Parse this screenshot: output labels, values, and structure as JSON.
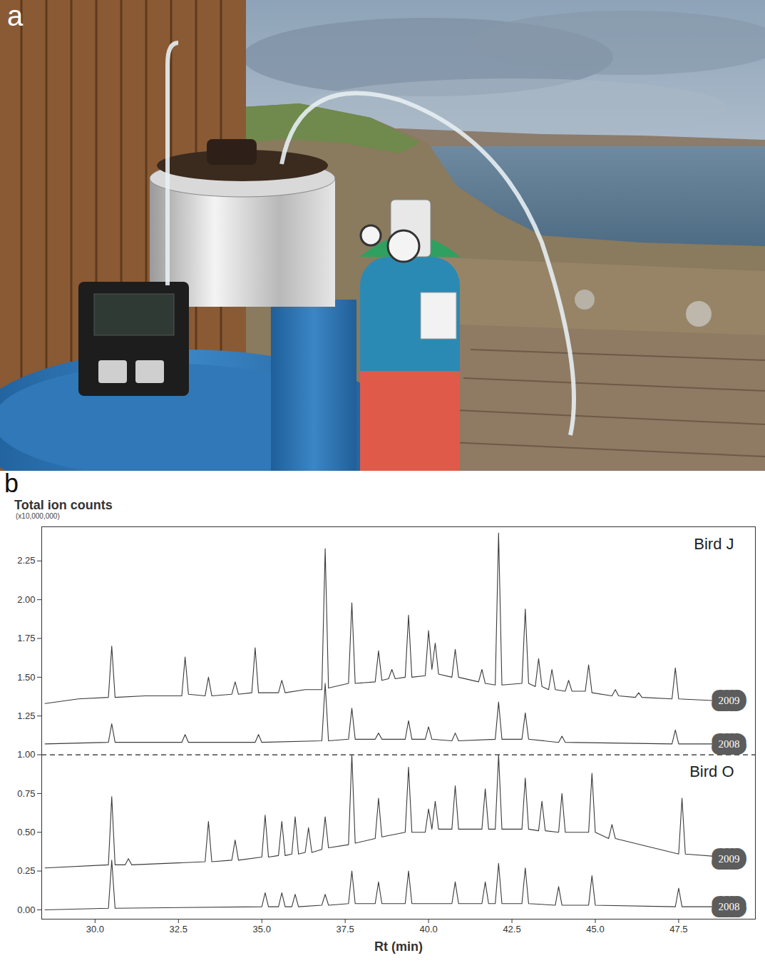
{
  "panel_letters": [
    "a",
    "b"
  ],
  "chart_data": {
    "type": "line",
    "ylabel": "Total ion counts",
    "ylabel_note": "(x10,000,000)",
    "xlabel": "Rt (min)",
    "xlim": [
      28.4,
      49.8
    ],
    "ylim": [
      -0.06,
      2.47
    ],
    "xticks": [
      {
        "value": 30,
        "label": "30.0"
      },
      32.5,
      {
        "value": 35,
        "label": "35.0"
      },
      37.5,
      {
        "value": 40,
        "label": "40.0"
      },
      42.5,
      {
        "value": 45,
        "label": "45.0"
      },
      47.5
    ],
    "yticks": [
      {
        "value": 0,
        "label": "0.00"
      },
      0.25,
      {
        "value": 0.5,
        "label": "0.50"
      },
      0.75,
      {
        "value": 1,
        "label": "1.00"
      },
      1.25,
      {
        "value": 1.5,
        "label": "1.50"
      },
      1.75,
      {
        "value": 2,
        "label": "2.00"
      },
      2.25
    ],
    "grid": false,
    "reference_lines": [
      {
        "y": 1.0,
        "line_style": "dashed"
      }
    ],
    "series": [
      {
        "name": "2009",
        "bird": "Bird J",
        "color": "#3a3a3a",
        "x": [
          28.5,
          29.5,
          30.4,
          30.5,
          30.6,
          31.5,
          32.6,
          32.7,
          32.8,
          33.3,
          33.4,
          33.5,
          34.1,
          34.2,
          34.3,
          34.7,
          34.8,
          34.9,
          35.5,
          35.6,
          35.7,
          36.3,
          36.8,
          36.9,
          37.0,
          37.6,
          37.7,
          37.8,
          38.4,
          38.5,
          38.6,
          38.8,
          38.9,
          39.0,
          39.3,
          39.4,
          39.5,
          39.9,
          40.0,
          40.1,
          40.2,
          40.3,
          40.7,
          40.8,
          40.9,
          41.5,
          41.6,
          41.7,
          42.0,
          42.1,
          42.2,
          42.8,
          42.9,
          43.0,
          43.2,
          43.3,
          43.4,
          43.6,
          43.7,
          43.8,
          44.1,
          44.2,
          44.3,
          44.7,
          44.8,
          44.9,
          45.5,
          45.6,
          45.7,
          46.2,
          46.3,
          46.4,
          47.3,
          47.4,
          47.5,
          48.5,
          49.5
        ],
        "values": [
          1.33,
          1.36,
          1.37,
          1.7,
          1.37,
          1.38,
          1.38,
          1.63,
          1.39,
          1.38,
          1.5,
          1.38,
          1.39,
          1.47,
          1.39,
          1.4,
          1.69,
          1.4,
          1.4,
          1.48,
          1.4,
          1.42,
          1.42,
          2.33,
          1.43,
          1.46,
          1.98,
          1.46,
          1.47,
          1.67,
          1.48,
          1.49,
          1.55,
          1.49,
          1.5,
          1.9,
          1.5,
          1.51,
          1.8,
          1.55,
          1.72,
          1.52,
          1.5,
          1.68,
          1.5,
          1.47,
          1.55,
          1.46,
          1.45,
          2.43,
          1.45,
          1.46,
          1.94,
          1.46,
          1.44,
          1.62,
          1.44,
          1.42,
          1.55,
          1.42,
          1.41,
          1.48,
          1.41,
          1.41,
          1.58,
          1.4,
          1.38,
          1.42,
          1.38,
          1.37,
          1.4,
          1.37,
          1.36,
          1.56,
          1.36,
          1.35,
          1.35
        ]
      },
      {
        "name": "2008",
        "bird": "Bird J",
        "color": "#3a3a3a",
        "x": [
          28.5,
          30.4,
          30.5,
          30.6,
          32.6,
          32.7,
          32.8,
          34.8,
          34.9,
          35.0,
          36.8,
          36.9,
          37.0,
          37.6,
          37.7,
          37.8,
          38.4,
          38.5,
          38.6,
          39.3,
          39.4,
          39.5,
          39.9,
          40.0,
          40.1,
          40.7,
          40.8,
          40.9,
          42.0,
          42.1,
          42.2,
          42.8,
          42.9,
          43.0,
          43.9,
          44.0,
          44.1,
          47.3,
          47.4,
          47.5,
          49.5
        ],
        "values": [
          1.07,
          1.08,
          1.2,
          1.08,
          1.08,
          1.13,
          1.08,
          1.08,
          1.13,
          1.08,
          1.09,
          1.46,
          1.09,
          1.1,
          1.3,
          1.1,
          1.1,
          1.14,
          1.1,
          1.1,
          1.22,
          1.1,
          1.1,
          1.18,
          1.1,
          1.09,
          1.14,
          1.09,
          1.1,
          1.34,
          1.1,
          1.1,
          1.27,
          1.1,
          1.08,
          1.12,
          1.08,
          1.07,
          1.16,
          1.07,
          1.07
        ]
      },
      {
        "name": "2009",
        "bird": "Bird O",
        "color": "#3a3a3a",
        "x": [
          28.5,
          30.4,
          30.5,
          30.6,
          30.9,
          31.0,
          31.1,
          33.3,
          33.4,
          33.5,
          34.1,
          34.2,
          34.3,
          35.0,
          35.1,
          35.2,
          35.5,
          35.6,
          35.7,
          35.9,
          36.0,
          36.1,
          36.3,
          36.4,
          36.5,
          36.8,
          36.9,
          37.0,
          37.6,
          37.7,
          37.8,
          38.4,
          38.5,
          38.6,
          39.3,
          39.4,
          39.5,
          39.9,
          40.0,
          40.1,
          40.2,
          40.3,
          40.7,
          40.8,
          40.9,
          41.6,
          41.7,
          41.8,
          42.0,
          42.1,
          42.2,
          42.8,
          42.9,
          43.0,
          43.3,
          43.4,
          43.5,
          43.9,
          44.0,
          44.1,
          44.8,
          44.9,
          45.0,
          45.4,
          45.5,
          45.6,
          47.5,
          47.6,
          47.7,
          49.5
        ],
        "values": [
          0.27,
          0.29,
          0.73,
          0.29,
          0.29,
          0.33,
          0.29,
          0.31,
          0.57,
          0.31,
          0.32,
          0.45,
          0.32,
          0.34,
          0.61,
          0.34,
          0.35,
          0.57,
          0.35,
          0.36,
          0.6,
          0.36,
          0.37,
          0.53,
          0.37,
          0.39,
          0.6,
          0.4,
          0.42,
          1.0,
          0.43,
          0.46,
          0.72,
          0.47,
          0.5,
          0.92,
          0.5,
          0.5,
          0.65,
          0.52,
          0.7,
          0.52,
          0.52,
          0.8,
          0.52,
          0.52,
          0.78,
          0.52,
          0.52,
          1.0,
          0.52,
          0.52,
          0.85,
          0.52,
          0.51,
          0.7,
          0.51,
          0.5,
          0.75,
          0.5,
          0.5,
          0.88,
          0.5,
          0.46,
          0.55,
          0.46,
          0.36,
          0.72,
          0.36,
          0.33
        ]
      },
      {
        "name": "2008",
        "bird": "Bird O",
        "color": "#3a3a3a",
        "x": [
          28.5,
          30.4,
          30.5,
          30.6,
          35.0,
          35.1,
          35.2,
          35.5,
          35.6,
          35.7,
          35.9,
          36.0,
          36.1,
          36.8,
          36.9,
          37.0,
          37.6,
          37.7,
          37.8,
          38.4,
          38.5,
          38.6,
          39.3,
          39.4,
          39.5,
          40.7,
          40.8,
          40.9,
          41.6,
          41.7,
          41.8,
          42.0,
          42.1,
          42.2,
          42.8,
          42.9,
          43.0,
          43.8,
          43.9,
          44.0,
          44.8,
          44.9,
          45.0,
          47.4,
          47.5,
          47.6,
          49.5
        ],
        "values": [
          0.0,
          0.01,
          0.32,
          0.01,
          0.02,
          0.11,
          0.02,
          0.02,
          0.11,
          0.02,
          0.02,
          0.1,
          0.02,
          0.03,
          0.1,
          0.03,
          0.04,
          0.25,
          0.04,
          0.04,
          0.18,
          0.04,
          0.04,
          0.25,
          0.04,
          0.04,
          0.18,
          0.04,
          0.04,
          0.18,
          0.04,
          0.04,
          0.3,
          0.04,
          0.04,
          0.27,
          0.04,
          0.03,
          0.15,
          0.03,
          0.03,
          0.22,
          0.03,
          0.02,
          0.14,
          0.02,
          0.02
        ]
      }
    ]
  }
}
